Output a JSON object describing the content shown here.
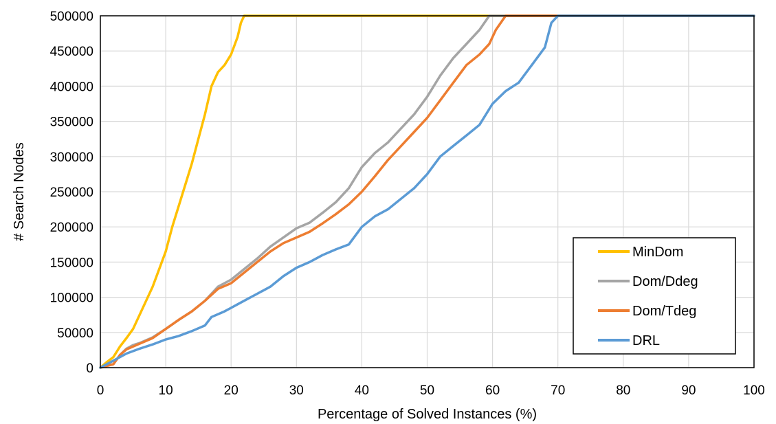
{
  "chart_data": {
    "type": "line",
    "title": "",
    "xlabel": "Percentage of Solved Instances (%)",
    "ylabel": "# Search Nodes",
    "xlim": [
      0,
      100
    ],
    "ylim": [
      0,
      500000
    ],
    "x_ticks": [
      0,
      10,
      20,
      30,
      40,
      50,
      60,
      70,
      80,
      90,
      100
    ],
    "y_ticks": [
      0,
      50000,
      100000,
      150000,
      200000,
      250000,
      300000,
      350000,
      400000,
      450000,
      500000
    ],
    "grid": true,
    "legend_position": "bottom-right",
    "series": [
      {
        "name": "MinDom",
        "color": "#FFC000",
        "points": [
          [
            0,
            0
          ],
          [
            1,
            8000
          ],
          [
            2,
            15000
          ],
          [
            3,
            30000
          ],
          [
            4,
            42000
          ],
          [
            5,
            55000
          ],
          [
            6,
            75000
          ],
          [
            7,
            95000
          ],
          [
            8,
            115000
          ],
          [
            9,
            140000
          ],
          [
            10,
            165000
          ],
          [
            11,
            200000
          ],
          [
            12,
            230000
          ],
          [
            13,
            260000
          ],
          [
            14,
            290000
          ],
          [
            15,
            325000
          ],
          [
            16,
            360000
          ],
          [
            17,
            400000
          ],
          [
            18,
            420000
          ],
          [
            19,
            430000
          ],
          [
            20,
            445000
          ],
          [
            21,
            470000
          ],
          [
            21.5,
            490000
          ],
          [
            22,
            500000
          ],
          [
            100,
            500000
          ]
        ]
      },
      {
        "name": "Dom/Ddeg",
        "color": "#A5A5A5",
        "points": [
          [
            0,
            0
          ],
          [
            2,
            5000
          ],
          [
            3,
            18000
          ],
          [
            4,
            27000
          ],
          [
            5,
            32000
          ],
          [
            6,
            35000
          ],
          [
            8,
            43000
          ],
          [
            10,
            55000
          ],
          [
            12,
            68000
          ],
          [
            14,
            80000
          ],
          [
            16,
            95000
          ],
          [
            18,
            115000
          ],
          [
            20,
            125000
          ],
          [
            22,
            140000
          ],
          [
            24,
            155000
          ],
          [
            26,
            172000
          ],
          [
            28,
            185000
          ],
          [
            30,
            198000
          ],
          [
            32,
            206000
          ],
          [
            34,
            220000
          ],
          [
            36,
            235000
          ],
          [
            38,
            255000
          ],
          [
            40,
            285000
          ],
          [
            42,
            305000
          ],
          [
            44,
            320000
          ],
          [
            46,
            340000
          ],
          [
            48,
            360000
          ],
          [
            50,
            385000
          ],
          [
            52,
            415000
          ],
          [
            54,
            440000
          ],
          [
            56,
            460000
          ],
          [
            58,
            480000
          ],
          [
            59.5,
            500000
          ],
          [
            100,
            500000
          ]
        ]
      },
      {
        "name": "Dom/Tdeg",
        "color": "#ED7D31",
        "points": [
          [
            0,
            0
          ],
          [
            2,
            5000
          ],
          [
            3,
            18000
          ],
          [
            4,
            26000
          ],
          [
            5,
            30000
          ],
          [
            6,
            34000
          ],
          [
            8,
            42000
          ],
          [
            10,
            55000
          ],
          [
            12,
            68000
          ],
          [
            14,
            80000
          ],
          [
            16,
            95000
          ],
          [
            18,
            112000
          ],
          [
            20,
            120000
          ],
          [
            22,
            135000
          ],
          [
            24,
            150000
          ],
          [
            26,
            165000
          ],
          [
            28,
            177000
          ],
          [
            30,
            185000
          ],
          [
            32,
            193000
          ],
          [
            34,
            205000
          ],
          [
            36,
            218000
          ],
          [
            38,
            232000
          ],
          [
            40,
            250000
          ],
          [
            42,
            272000
          ],
          [
            44,
            295000
          ],
          [
            46,
            315000
          ],
          [
            48,
            335000
          ],
          [
            50,
            355000
          ],
          [
            52,
            380000
          ],
          [
            54,
            405000
          ],
          [
            56,
            430000
          ],
          [
            58,
            445000
          ],
          [
            59.5,
            460000
          ],
          [
            60.5,
            480000
          ],
          [
            62,
            500000
          ],
          [
            100,
            500000
          ]
        ]
      },
      {
        "name": "DRL",
        "color": "#5B9BD5",
        "points": [
          [
            0,
            0
          ],
          [
            2,
            10000
          ],
          [
            4,
            20000
          ],
          [
            6,
            27000
          ],
          [
            8,
            33000
          ],
          [
            10,
            40000
          ],
          [
            12,
            45000
          ],
          [
            14,
            52000
          ],
          [
            16,
            60000
          ],
          [
            17,
            72000
          ],
          [
            19,
            80000
          ],
          [
            20,
            85000
          ],
          [
            21,
            90000
          ],
          [
            22,
            95000
          ],
          [
            24,
            105000
          ],
          [
            26,
            115000
          ],
          [
            28,
            130000
          ],
          [
            30,
            142000
          ],
          [
            32,
            150000
          ],
          [
            34,
            160000
          ],
          [
            36,
            168000
          ],
          [
            38,
            175000
          ],
          [
            40,
            200000
          ],
          [
            42,
            215000
          ],
          [
            44,
            225000
          ],
          [
            46,
            240000
          ],
          [
            48,
            255000
          ],
          [
            50,
            275000
          ],
          [
            52,
            300000
          ],
          [
            54,
            315000
          ],
          [
            56,
            330000
          ],
          [
            58,
            345000
          ],
          [
            60,
            375000
          ],
          [
            62,
            393000
          ],
          [
            64,
            405000
          ],
          [
            66,
            430000
          ],
          [
            68,
            455000
          ],
          [
            69,
            490000
          ],
          [
            70,
            500000
          ],
          [
            100,
            500000
          ]
        ]
      }
    ]
  }
}
